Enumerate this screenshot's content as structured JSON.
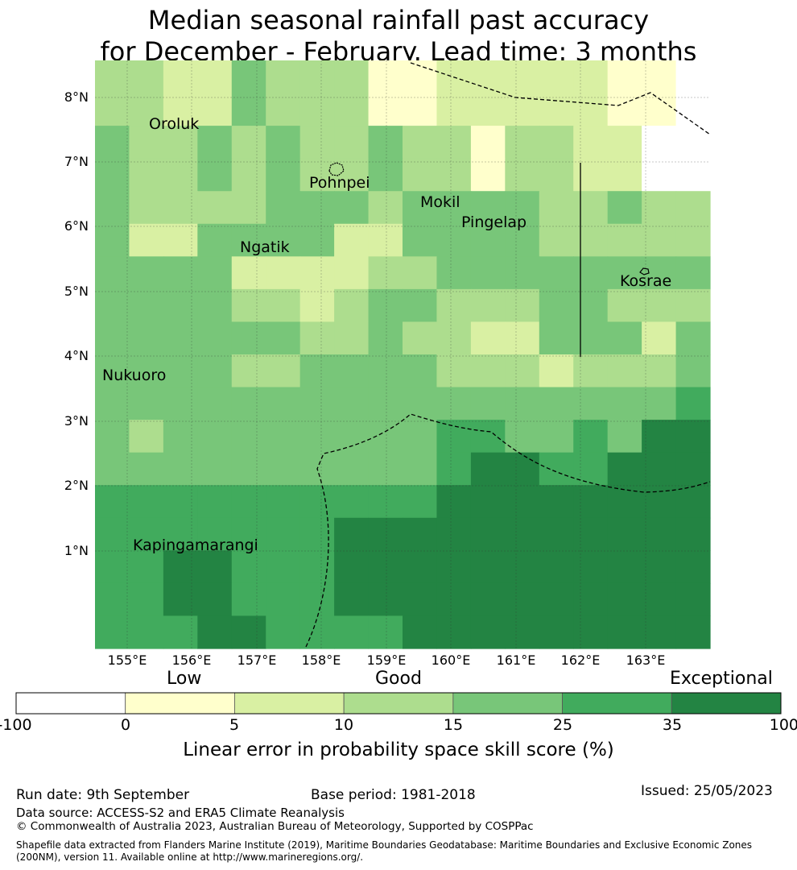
{
  "title": {
    "line1": "Median seasonal rainfall past accuracy",
    "line2": "for December - February. Lead time: 3 months"
  },
  "map": {
    "lat_labels": [
      "8°N",
      "7°N",
      "6°N",
      "5°N",
      "4°N",
      "3°N",
      "2°N",
      "1°N"
    ],
    "lon_labels": [
      "155°E",
      "156°E",
      "157°E",
      "158°E",
      "159°E",
      "160°E",
      "161°E",
      "162°E",
      "163°E"
    ],
    "places": [
      "Oroluk",
      "Pohnpei",
      "Mokil",
      "Pingelap",
      "Ngatik",
      "Kosrae",
      "Nukuoro",
      "Kapingamarangi"
    ],
    "grid_colors": [
      "#ffffff",
      "#ffffcc",
      "#d9f0a3",
      "#addd8e",
      "#78c679",
      "#41ab5d",
      "#238443"
    ],
    "cells": [
      [
        3,
        3,
        2,
        2,
        4,
        3,
        3,
        3,
        1,
        1,
        2,
        2,
        2,
        2,
        2,
        1,
        1,
        0
      ],
      [
        3,
        3,
        2,
        2,
        4,
        3,
        3,
        3,
        1,
        1,
        2,
        2,
        2,
        2,
        2,
        1,
        1,
        0
      ],
      [
        4,
        3,
        3,
        4,
        3,
        4,
        3,
        3,
        4,
        3,
        3,
        1,
        3,
        3,
        2,
        2,
        0,
        0
      ],
      [
        4,
        3,
        3,
        4,
        3,
        4,
        3,
        3,
        4,
        3,
        3,
        1,
        3,
        3,
        2,
        2,
        0,
        0
      ],
      [
        4,
        3,
        3,
        3,
        3,
        4,
        4,
        4,
        3,
        4,
        4,
        4,
        4,
        3,
        3,
        4,
        3,
        3
      ],
      [
        4,
        2,
        2,
        4,
        4,
        4,
        4,
        2,
        2,
        4,
        4,
        4,
        4,
        3,
        3,
        3,
        3,
        3
      ],
      [
        4,
        4,
        4,
        4,
        2,
        2,
        2,
        2,
        3,
        3,
        4,
        4,
        4,
        4,
        4,
        4,
        4,
        4
      ],
      [
        4,
        4,
        4,
        4,
        3,
        3,
        2,
        3,
        4,
        4,
        3,
        3,
        3,
        4,
        4,
        3,
        3,
        3
      ],
      [
        4,
        4,
        4,
        4,
        4,
        4,
        3,
        3,
        4,
        3,
        3,
        2,
        2,
        4,
        4,
        4,
        2,
        4
      ],
      [
        4,
        4,
        4,
        4,
        3,
        3,
        4,
        4,
        4,
        4,
        3,
        3,
        3,
        2,
        3,
        3,
        3,
        4
      ],
      [
        4,
        4,
        4,
        4,
        4,
        4,
        4,
        4,
        4,
        4,
        4,
        4,
        4,
        4,
        4,
        4,
        4,
        5
      ],
      [
        4,
        3,
        4,
        4,
        4,
        4,
        4,
        4,
        4,
        4,
        5,
        5,
        4,
        4,
        5,
        4,
        6,
        6
      ],
      [
        4,
        4,
        4,
        4,
        4,
        4,
        4,
        4,
        4,
        4,
        5,
        6,
        6,
        5,
        5,
        6,
        6,
        6
      ],
      [
        5,
        5,
        5,
        5,
        5,
        5,
        5,
        5,
        5,
        5,
        6,
        6,
        6,
        6,
        6,
        6,
        6,
        6
      ],
      [
        5,
        5,
        5,
        5,
        5,
        5,
        5,
        6,
        6,
        6,
        6,
        6,
        6,
        6,
        6,
        6,
        6,
        6
      ],
      [
        5,
        5,
        6,
        6,
        5,
        5,
        5,
        6,
        6,
        6,
        6,
        6,
        6,
        6,
        6,
        6,
        6,
        6
      ],
      [
        5,
        5,
        6,
        6,
        5,
        5,
        5,
        6,
        6,
        6,
        6,
        6,
        6,
        6,
        6,
        6,
        6,
        6
      ],
      [
        5,
        5,
        5,
        6,
        6,
        5,
        5,
        5,
        5,
        6,
        6,
        6,
        6,
        6,
        6,
        6,
        6,
        6
      ]
    ]
  },
  "colorbar": {
    "category_words": [
      "Low",
      "Good",
      "Exceptional"
    ],
    "ticks": [
      "-100",
      "0",
      "5",
      "10",
      "15",
      "25",
      "35",
      "100"
    ],
    "colors": [
      "#ffffff",
      "#ffffcc",
      "#d9f0a3",
      "#addd8e",
      "#78c679",
      "#41ab5d",
      "#238443"
    ],
    "title": "Linear error in probability space skill score (%)"
  },
  "footer": {
    "run_date": "Run date: 9th September",
    "base_period": "Base period: 1981-2018",
    "issued": "Issued: 25/05/2023",
    "data_source": "Data source: ACCESS-S2 and ERA5 Climate Reanalysis",
    "copyright": "© Commonwealth of Australia 2023, Australian Bureau of Meteorology, Supported by COSPPac",
    "shapefile_line1": "Shapefile data extracted from Flanders Marine Institute (2019), Maritime Boundaries Geodatabase: Maritime Boundaries and Exclusive Economic Zones",
    "shapefile_line2": "(200NM), version 11. Available online at http://www.marineregions.org/."
  }
}
